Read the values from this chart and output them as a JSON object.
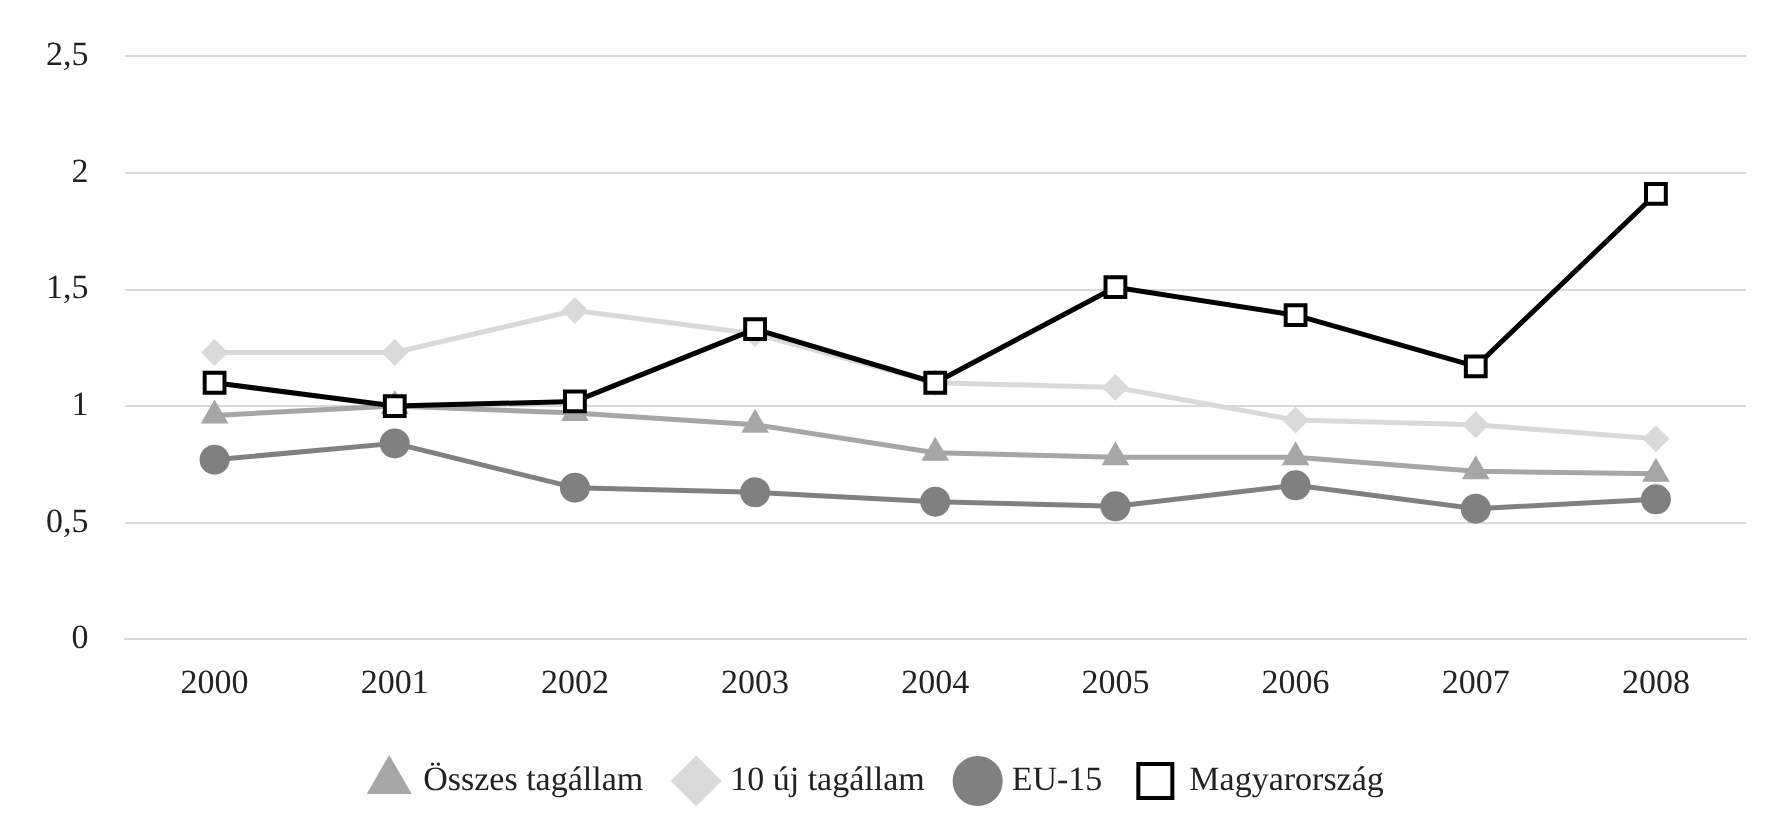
{
  "chart_data": {
    "type": "line",
    "categories": [
      "2000",
      "2001",
      "2002",
      "2003",
      "2004",
      "2005",
      "2006",
      "2007",
      "2008"
    ],
    "ylim": [
      0,
      2.5
    ],
    "yticks": [
      0,
      {
        "value": 0.5,
        "label": "0,5"
      },
      1,
      {
        "value": 1.5,
        "label": "1,5"
      },
      2,
      {
        "value": 2.5,
        "label": "2,5"
      }
    ],
    "grid": "y",
    "legend": "bottom",
    "line_style": "solid",
    "series": [
      {
        "name": "Összes tagállam",
        "color": "#a6a6a6",
        "marker": "triangle",
        "values": [
          0.96,
          1.0,
          0.97,
          0.92,
          0.8,
          0.78,
          0.78,
          0.72,
          0.71
        ]
      },
      {
        "name": "10 új tagállam",
        "color": "#d9d9d9",
        "marker": "diamond",
        "values": [
          1.23,
          1.23,
          1.41,
          1.31,
          1.1,
          1.08,
          0.94,
          0.92,
          0.86
        ]
      },
      {
        "name": "EU-15",
        "color": "#808080",
        "marker": "circle",
        "values": [
          0.77,
          0.84,
          0.65,
          0.63,
          0.59,
          0.57,
          0.66,
          0.56,
          0.6
        ]
      },
      {
        "name": "Magyarország",
        "color": "#000000",
        "marker": "square",
        "values": [
          1.1,
          1.0,
          1.02,
          1.33,
          1.1,
          1.51,
          1.39,
          1.17,
          1.91
        ]
      }
    ]
  }
}
